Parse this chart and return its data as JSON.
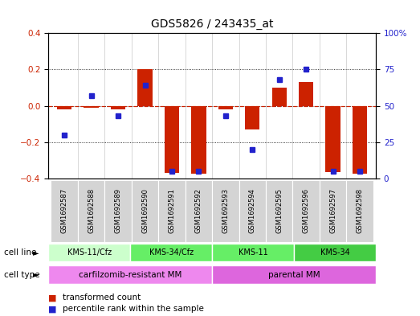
{
  "title": "GDS5826 / 243435_at",
  "samples": [
    "GSM1692587",
    "GSM1692588",
    "GSM1692589",
    "GSM1692590",
    "GSM1692591",
    "GSM1692592",
    "GSM1692593",
    "GSM1692594",
    "GSM1692595",
    "GSM1692596",
    "GSM1692597",
    "GSM1692598"
  ],
  "transformed_count": [
    -0.02,
    -0.01,
    -0.02,
    0.2,
    -0.37,
    -0.375,
    -0.02,
    -0.13,
    0.1,
    0.13,
    -0.365,
    -0.375
  ],
  "percentile_rank": [
    30,
    57,
    43,
    64,
    5,
    5,
    43,
    20,
    68,
    75,
    5,
    5
  ],
  "ylim_left": [
    -0.4,
    0.4
  ],
  "ylim_right": [
    0,
    100
  ],
  "yticks_left": [
    -0.4,
    -0.2,
    0.0,
    0.2,
    0.4
  ],
  "yticks_right": [
    0,
    25,
    50,
    75,
    100
  ],
  "bar_color": "#cc2200",
  "dot_color": "#2222cc",
  "bg_color": "#ffffff",
  "plot_bg": "#ffffff",
  "cell_line_groups": [
    {
      "label": "KMS-11/Cfz",
      "start": 0,
      "end": 3,
      "color": "#ccffcc"
    },
    {
      "label": "KMS-34/Cfz",
      "start": 3,
      "end": 6,
      "color": "#66ee66"
    },
    {
      "label": "KMS-11",
      "start": 6,
      "end": 9,
      "color": "#66ee66"
    },
    {
      "label": "KMS-34",
      "start": 9,
      "end": 12,
      "color": "#44cc44"
    }
  ],
  "cell_type_groups": [
    {
      "label": "carfilzomib-resistant MM",
      "start": 0,
      "end": 6,
      "color": "#ee88ee"
    },
    {
      "label": "parental MM",
      "start": 6,
      "end": 12,
      "color": "#dd66dd"
    }
  ],
  "legend_items": [
    {
      "label": "transformed count",
      "color": "#cc2200"
    },
    {
      "label": "percentile rank within the sample",
      "color": "#2222cc"
    }
  ],
  "ylabel_left_color": "#cc2200",
  "ylabel_right_color": "#2222cc"
}
